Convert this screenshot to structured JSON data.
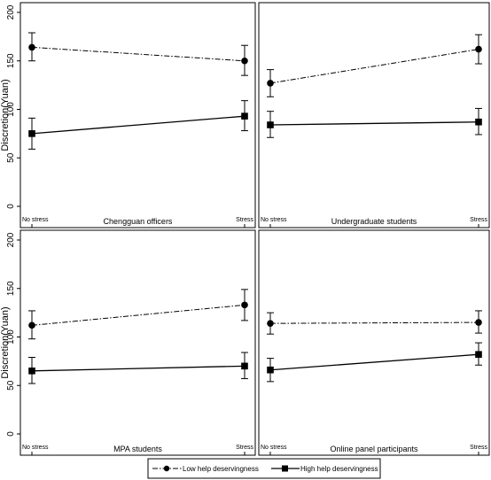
{
  "chart_data": [
    {
      "type": "line",
      "title": "Chengguan officers",
      "ylabel": "Discretion(Yuan)",
      "categories": [
        "No stress",
        "Stress"
      ],
      "ylim": [
        0,
        200
      ],
      "yticks": [
        0,
        50,
        100,
        150,
        200
      ],
      "series": [
        {
          "name": "Low help deservingness",
          "values": [
            164,
            150
          ],
          "ci_low": [
            150,
            135
          ],
          "ci_high": [
            179,
            166
          ],
          "marker": "circle",
          "line": "dash-dot"
        },
        {
          "name": "High help deservingness",
          "values": [
            75,
            93
          ],
          "ci_low": [
            59,
            78
          ],
          "ci_high": [
            91,
            109
          ],
          "marker": "square",
          "line": "solid"
        }
      ]
    },
    {
      "type": "line",
      "title": "Undergraduate students",
      "categories": [
        "No stress",
        "Stress"
      ],
      "ylim": [
        0,
        200
      ],
      "series": [
        {
          "name": "Low help deservingness",
          "values": [
            127,
            162
          ],
          "ci_low": [
            113,
            147
          ],
          "ci_high": [
            141,
            177
          ],
          "marker": "circle",
          "line": "dash-dot"
        },
        {
          "name": "High help deservingness",
          "values": [
            84,
            87
          ],
          "ci_low": [
            71,
            74
          ],
          "ci_high": [
            98,
            101
          ],
          "marker": "square",
          "line": "solid"
        }
      ]
    },
    {
      "type": "line",
      "title": "MPA students",
      "ylabel": "Discretion(Yuan)",
      "categories": [
        "No stress",
        "Stress"
      ],
      "ylim": [
        0,
        200
      ],
      "yticks": [
        0,
        50,
        100,
        150,
        200
      ],
      "series": [
        {
          "name": "Low help deservingness",
          "values": [
            112,
            133
          ],
          "ci_low": [
            98,
            117
          ],
          "ci_high": [
            127,
            149
          ],
          "marker": "circle",
          "line": "dash-dot"
        },
        {
          "name": "High help deservingness",
          "values": [
            65,
            70
          ],
          "ci_low": [
            52,
            57
          ],
          "ci_high": [
            79,
            84
          ],
          "marker": "square",
          "line": "solid"
        }
      ]
    },
    {
      "type": "line",
      "title": "Online panel participants",
      "categories": [
        "No stress",
        "Stress"
      ],
      "ylim": [
        0,
        200
      ],
      "series": [
        {
          "name": "Low help deservingness",
          "values": [
            114,
            115
          ],
          "ci_low": [
            103,
            104
          ],
          "ci_high": [
            125,
            127
          ],
          "marker": "circle",
          "line": "dash-dot"
        },
        {
          "name": "High help deservingness",
          "values": [
            66,
            82
          ],
          "ci_low": [
            54,
            71
          ],
          "ci_high": [
            78,
            94
          ],
          "marker": "square",
          "line": "solid"
        }
      ]
    }
  ],
  "legend": {
    "items": [
      {
        "label": "Low help deservingness",
        "marker": "circle",
        "line": "dash-dot"
      },
      {
        "label": "High help deservingness",
        "marker": "square",
        "line": "solid"
      }
    ]
  }
}
